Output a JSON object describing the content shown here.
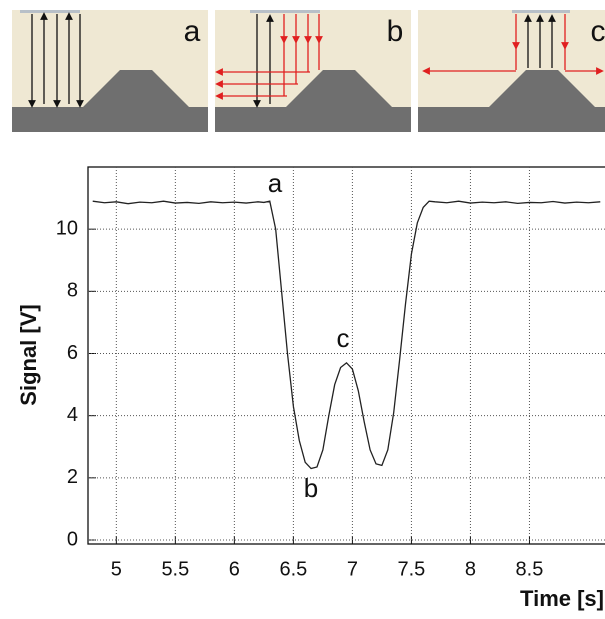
{
  "panel_labels": [
    "a",
    "b",
    "c"
  ],
  "chart_data": {
    "type": "line",
    "x": [
      4.8,
      4.9,
      5.0,
      5.1,
      5.2,
      5.3,
      5.4,
      5.5,
      5.6,
      5.7,
      5.8,
      5.9,
      6.0,
      6.1,
      6.2,
      6.25,
      6.3,
      6.35,
      6.4,
      6.45,
      6.5,
      6.55,
      6.6,
      6.65,
      6.7,
      6.75,
      6.8,
      6.85,
      6.9,
      6.95,
      7.0,
      7.05,
      7.1,
      7.15,
      7.2,
      7.25,
      7.3,
      7.35,
      7.4,
      7.45,
      7.5,
      7.55,
      7.6,
      7.65,
      7.7,
      7.8,
      7.9,
      8.0,
      8.1,
      8.2,
      8.3,
      8.4,
      8.5,
      8.6,
      8.7,
      8.8,
      8.9,
      9.0,
      9.1
    ],
    "values": [
      10.9,
      10.85,
      10.88,
      10.82,
      10.87,
      10.85,
      10.9,
      10.84,
      10.86,
      10.83,
      10.88,
      10.85,
      10.87,
      10.84,
      10.88,
      10.86,
      10.9,
      10.0,
      8.0,
      6.0,
      4.3,
      3.2,
      2.5,
      2.3,
      2.35,
      2.9,
      4.0,
      5.0,
      5.55,
      5.7,
      5.5,
      4.8,
      3.8,
      2.9,
      2.45,
      2.4,
      2.9,
      4.1,
      5.8,
      7.6,
      9.2,
      10.2,
      10.7,
      10.9,
      10.88,
      10.85,
      10.9,
      10.84,
      10.87,
      10.85,
      10.88,
      10.83,
      10.86,
      10.85,
      10.89,
      10.84,
      10.87,
      10.85,
      10.88
    ],
    "color": "#222222",
    "xlim": [
      4.76,
      9.14
    ],
    "ylim": [
      0,
      12
    ],
    "xticks": [
      5,
      5.5,
      6,
      6.5,
      7,
      7.5,
      8,
      8.5
    ],
    "yticks": [
      0,
      2,
      4,
      6,
      8,
      10
    ],
    "grid": true,
    "xlabel": "Time [s]",
    "ylabel": "Signal [V]",
    "annotations": [
      "a",
      "b",
      "c"
    ]
  }
}
